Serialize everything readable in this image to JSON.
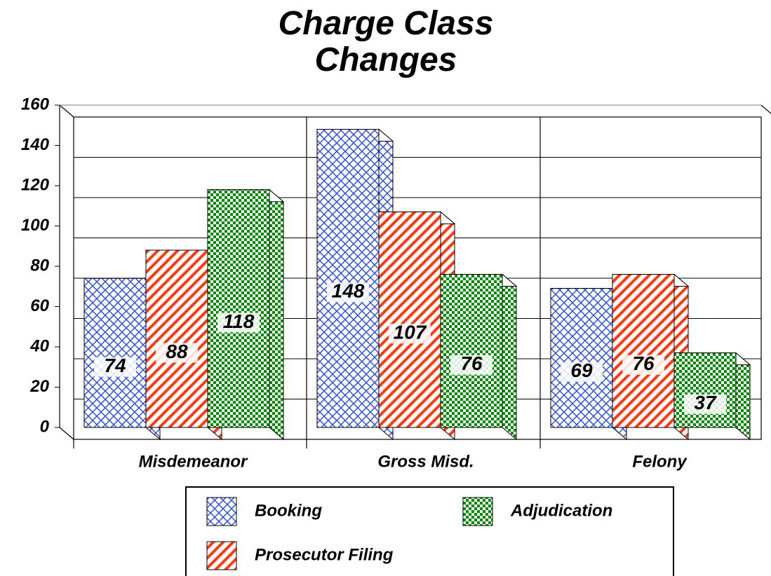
{
  "chart_data": {
    "type": "bar3d",
    "title": "Charge Class Changes",
    "categories": [
      "Misdemeanor",
      "Gross Misd.",
      "Felony"
    ],
    "series": [
      {
        "name": "Booking",
        "color": "#2f4fe0",
        "values": [
          74,
          148,
          69
        ]
      },
      {
        "name": "Prosecutor Filing",
        "color": "#ff3a10",
        "values": [
          88,
          107,
          76
        ]
      },
      {
        "name": "Adjudication",
        "color": "#008a00",
        "values": [
          118,
          76,
          37
        ]
      }
    ],
    "ylim": [
      0,
      160
    ],
    "yticks": [
      0,
      20,
      40,
      60,
      80,
      100,
      120,
      140,
      160
    ],
    "grid": true
  }
}
